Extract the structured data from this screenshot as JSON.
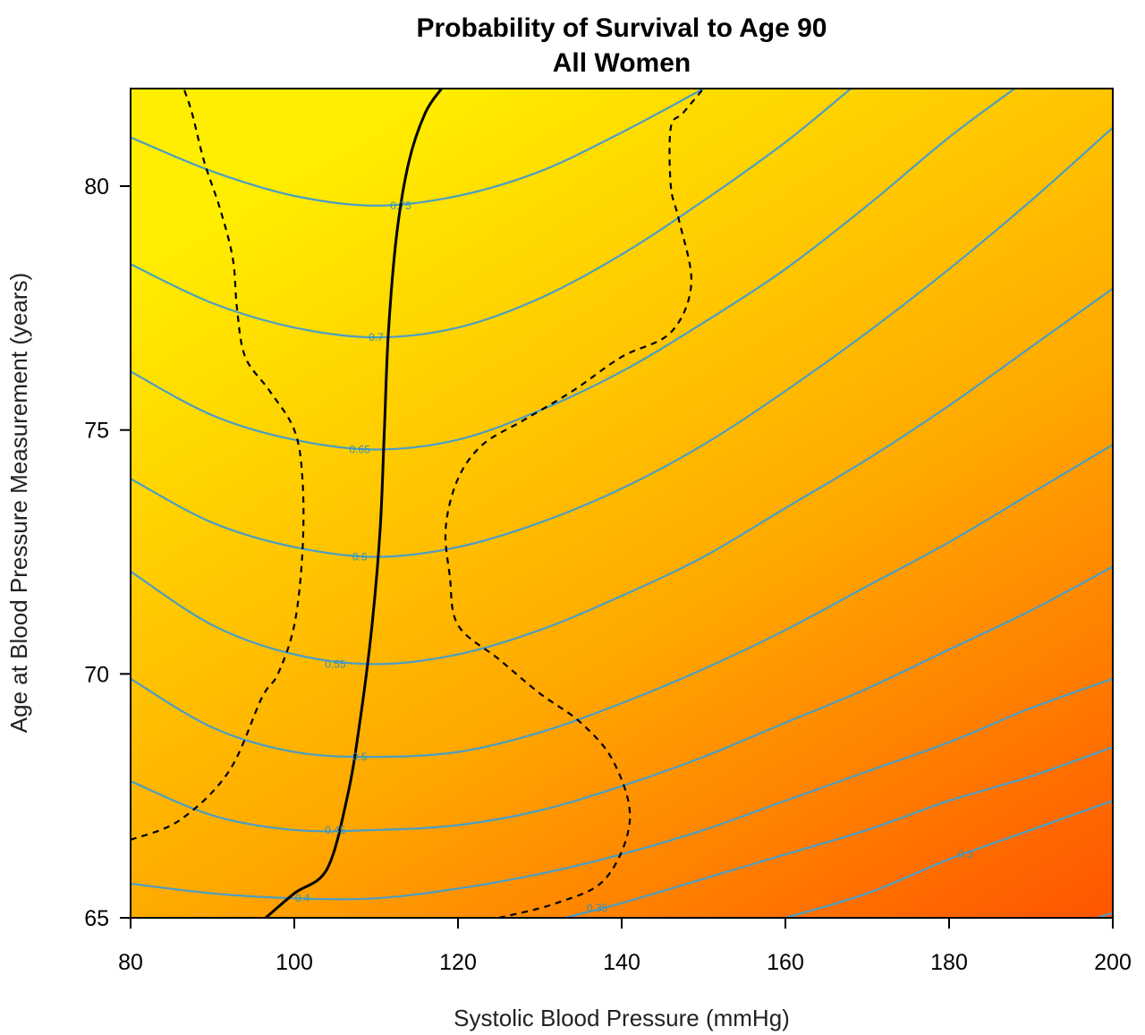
{
  "chart_data": {
    "type": "contour",
    "title": "Probability of Survival to Age 90",
    "subtitle": "All Women",
    "xlabel": "Systolic Blood Pressure (mmHg)",
    "ylabel": "Age at Blood Pressure Measurement (years)",
    "xlim": [
      80,
      200
    ],
    "ylim": [
      65,
      82
    ],
    "x_ticks": [
      80,
      100,
      120,
      140,
      160,
      180,
      200
    ],
    "y_ticks": [
      65,
      70,
      75,
      80
    ],
    "grid": false,
    "colors": {
      "fill_high": "#ffee00",
      "fill_low": "#ff5500",
      "contour": "#4a9ec4",
      "optimum": "#000000"
    },
    "contours": [
      {
        "label": "0.75",
        "label_at": [
          113,
          79.6
        ],
        "points": [
          [
            80,
            81.0
          ],
          [
            90,
            80.3
          ],
          [
            100,
            79.8
          ],
          [
            110,
            79.6
          ],
          [
            120,
            79.8
          ],
          [
            130,
            80.3
          ],
          [
            140,
            81.1
          ],
          [
            150,
            82.0
          ]
        ]
      },
      {
        "label": "0.7",
        "label_at": [
          110,
          76.9
        ],
        "points": [
          [
            80,
            78.4
          ],
          [
            90,
            77.6
          ],
          [
            100,
            77.1
          ],
          [
            110,
            76.9
          ],
          [
            120,
            77.1
          ],
          [
            130,
            77.7
          ],
          [
            140,
            78.6
          ],
          [
            150,
            79.7
          ],
          [
            160,
            80.9
          ],
          [
            168,
            82.0
          ]
        ]
      },
      {
        "label": "0.65",
        "label_at": [
          108,
          74.6
        ],
        "points": [
          [
            80,
            76.2
          ],
          [
            90,
            75.3
          ],
          [
            100,
            74.8
          ],
          [
            110,
            74.6
          ],
          [
            120,
            74.8
          ],
          [
            130,
            75.4
          ],
          [
            140,
            76.2
          ],
          [
            150,
            77.2
          ],
          [
            160,
            78.3
          ],
          [
            170,
            79.6
          ],
          [
            180,
            81.0
          ],
          [
            188,
            82.0
          ]
        ]
      },
      {
        "label": "0.6",
        "label_at": [
          108,
          72.4
        ],
        "points": [
          [
            80,
            74.0
          ],
          [
            90,
            73.1
          ],
          [
            100,
            72.6
          ],
          [
            110,
            72.4
          ],
          [
            120,
            72.6
          ],
          [
            130,
            73.1
          ],
          [
            140,
            73.8
          ],
          [
            150,
            74.7
          ],
          [
            160,
            75.8
          ],
          [
            170,
            77.0
          ],
          [
            180,
            78.3
          ],
          [
            190,
            79.7
          ],
          [
            200,
            81.2
          ]
        ]
      },
      {
        "label": "0.55",
        "label_at": [
          105,
          70.2
        ],
        "points": [
          [
            80,
            72.1
          ],
          [
            90,
            71.0
          ],
          [
            100,
            70.4
          ],
          [
            110,
            70.2
          ],
          [
            120,
            70.4
          ],
          [
            130,
            70.9
          ],
          [
            140,
            71.6
          ],
          [
            150,
            72.4
          ],
          [
            160,
            73.4
          ],
          [
            170,
            74.4
          ],
          [
            180,
            75.5
          ],
          [
            190,
            76.7
          ],
          [
            200,
            77.9
          ]
        ]
      },
      {
        "label": "0.5",
        "label_at": [
          108,
          68.3
        ],
        "points": [
          [
            80,
            69.9
          ],
          [
            90,
            68.9
          ],
          [
            100,
            68.4
          ],
          [
            110,
            68.3
          ],
          [
            120,
            68.4
          ],
          [
            130,
            68.8
          ],
          [
            140,
            69.4
          ],
          [
            150,
            70.1
          ],
          [
            160,
            70.9
          ],
          [
            170,
            71.8
          ],
          [
            180,
            72.7
          ],
          [
            190,
            73.7
          ],
          [
            200,
            74.7
          ]
        ]
      },
      {
        "label": "0.45",
        "label_at": [
          105,
          66.8
        ],
        "points": [
          [
            80,
            67.8
          ],
          [
            90,
            67.1
          ],
          [
            100,
            66.8
          ],
          [
            110,
            66.8
          ],
          [
            120,
            66.9
          ],
          [
            130,
            67.2
          ],
          [
            140,
            67.7
          ],
          [
            150,
            68.3
          ],
          [
            160,
            69.0
          ],
          [
            170,
            69.7
          ],
          [
            180,
            70.5
          ],
          [
            190,
            71.3
          ],
          [
            200,
            72.2
          ]
        ]
      },
      {
        "label": "0.4",
        "label_at": [
          101,
          65.4
        ],
        "points": [
          [
            80,
            65.7
          ],
          [
            90,
            65.5
          ],
          [
            100,
            65.4
          ],
          [
            110,
            65.4
          ],
          [
            120,
            65.6
          ],
          [
            130,
            65.9
          ],
          [
            140,
            66.3
          ],
          [
            150,
            66.8
          ],
          [
            160,
            67.4
          ],
          [
            170,
            68.0
          ],
          [
            180,
            68.6
          ],
          [
            190,
            69.3
          ],
          [
            200,
            69.9
          ]
        ]
      },
      {
        "label": "0.35",
        "label_at": [
          137,
          65.2
        ],
        "points": [
          [
            133,
            65.0
          ],
          [
            140,
            65.3
          ],
          [
            150,
            65.8
          ],
          [
            160,
            66.3
          ],
          [
            170,
            66.8
          ],
          [
            180,
            67.4
          ],
          [
            190,
            67.9
          ],
          [
            200,
            68.5
          ]
        ]
      },
      {
        "label": "0.3",
        "label_at": [
          182,
          66.3
        ],
        "points": [
          [
            160,
            65.0
          ],
          [
            170,
            65.5
          ],
          [
            180,
            66.2
          ],
          [
            190,
            66.8
          ],
          [
            200,
            67.4
          ]
        ]
      },
      {
        "label": "",
        "label_at": null,
        "points": [
          [
            198,
            65.0
          ],
          [
            200,
            65.1
          ]
        ]
      }
    ],
    "optimum_line": [
      [
        96.5,
        65.0
      ],
      [
        100,
        65.5
      ],
      [
        104,
        66.0
      ],
      [
        106.5,
        67.5
      ],
      [
        108,
        69.0
      ],
      [
        109.5,
        71.0
      ],
      [
        110.5,
        73.0
      ],
      [
        111,
        75.0
      ],
      [
        111.5,
        77.0
      ],
      [
        112.5,
        79.0
      ],
      [
        114,
        80.5
      ],
      [
        116,
        81.5
      ],
      [
        118,
        82.0
      ]
    ],
    "ci_left": [
      [
        80,
        66.6
      ],
      [
        86,
        67.0
      ],
      [
        92,
        68.0
      ],
      [
        96,
        69.5
      ],
      [
        98,
        70.0
      ],
      [
        100,
        71.0
      ],
      [
        101,
        72.5
      ],
      [
        101,
        74.0
      ],
      [
        100,
        75.0
      ],
      [
        97,
        75.8
      ],
      [
        94,
        76.5
      ],
      [
        93,
        77.5
      ],
      [
        92.5,
        78.5
      ],
      [
        91,
        79.5
      ],
      [
        89,
        80.5
      ],
      [
        87.5,
        81.5
      ],
      [
        86.5,
        82.0
      ]
    ],
    "ci_right": [
      [
        125,
        65.0
      ],
      [
        132,
        65.3
      ],
      [
        138,
        65.8
      ],
      [
        141,
        67.0
      ],
      [
        139,
        68.2
      ],
      [
        135,
        69.0
      ],
      [
        130,
        69.6
      ],
      [
        125,
        70.3
      ],
      [
        120,
        71.0
      ],
      [
        119,
        72.0
      ],
      [
        118.5,
        73.0
      ],
      [
        120,
        74.0
      ],
      [
        123,
        74.7
      ],
      [
        128,
        75.2
      ],
      [
        134,
        75.8
      ],
      [
        140,
        76.5
      ],
      [
        146,
        77.0
      ],
      [
        148.5,
        78.0
      ],
      [
        147,
        79.3
      ],
      [
        146,
        80.0
      ],
      [
        146,
        81.2
      ],
      [
        147.5,
        81.5
      ],
      [
        150,
        82.0
      ]
    ]
  }
}
